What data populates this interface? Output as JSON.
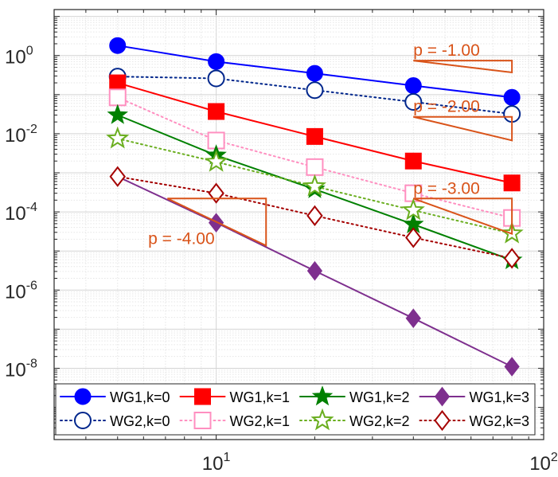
{
  "chart_data": {
    "type": "line",
    "title": "",
    "xlabel": "",
    "ylabel": "",
    "x_scale": "log",
    "y_scale": "log",
    "xlim": [
      3.2,
      100
    ],
    "ylim": [
      1.5e-10,
      15
    ],
    "grid": true,
    "x_ticks": [
      {
        "value": 10,
        "base": "10",
        "exp": "1"
      },
      {
        "value": 100,
        "base": "10",
        "exp": "2"
      }
    ],
    "y_ticks": [
      {
        "value": 1,
        "base": "10",
        "exp": "0"
      },
      {
        "value": 0.01,
        "base": "10",
        "exp": "-2"
      },
      {
        "value": 0.0001,
        "base": "10",
        "exp": "-4"
      },
      {
        "value": 1e-06,
        "base": "10",
        "exp": "-6"
      },
      {
        "value": 1e-08,
        "base": "10",
        "exp": "-8"
      }
    ],
    "x": [
      5,
      10,
      20,
      40,
      80
    ],
    "series": [
      {
        "name": "WG1,k=0",
        "color": "#0000ff",
        "marker": "circle",
        "filled": true,
        "dash": "solid",
        "values": [
          1.8,
          0.7,
          0.35,
          0.17,
          0.085
        ]
      },
      {
        "name": "WG2,k=0",
        "color": "#00268c",
        "marker": "circle",
        "filled": false,
        "dash": "dotted",
        "values": [
          0.29,
          0.26,
          0.13,
          0.065,
          0.032
        ]
      },
      {
        "name": "WG1,k=1",
        "color": "#ff0000",
        "marker": "square",
        "filled": true,
        "dash": "solid",
        "values": [
          0.2,
          0.037,
          0.0085,
          0.002,
          0.00055
        ]
      },
      {
        "name": "WG2,k=1",
        "color": "#ff8fc0",
        "marker": "square",
        "filled": false,
        "dash": "dotted",
        "values": [
          0.085,
          0.0067,
          0.0014,
          0.0003,
          7e-05
        ]
      },
      {
        "name": "WG1,k=2",
        "color": "#008000",
        "marker": "star",
        "filled": true,
        "dash": "solid",
        "values": [
          0.03,
          0.0028,
          0.00038,
          4.8e-05,
          5.8e-06
        ]
      },
      {
        "name": "WG2,k=2",
        "color": "#6aae1f",
        "marker": "star",
        "filled": false,
        "dash": "dotted",
        "values": [
          0.0075,
          0.0019,
          0.00045,
          0.00011,
          2.8e-05
        ]
      },
      {
        "name": "WG1,k=3",
        "color": "#7e2f8e",
        "marker": "diamond",
        "filled": true,
        "dash": "solid",
        "values": [
          0.0008,
          5.3e-05,
          3.1e-06,
          1.9e-07,
          1.1e-08
        ]
      },
      {
        "name": "WG2,k=3",
        "color": "#a50000",
        "marker": "diamond",
        "filled": false,
        "dash": "dotted",
        "values": [
          0.0008,
          0.0003,
          8e-05,
          2.2e-05,
          6.5e-06
        ]
      }
    ],
    "slope_triangles": [
      {
        "label": "p = -1.00",
        "slope": -1,
        "x_left": 40,
        "x_right": 80,
        "y_top": 0.74,
        "label_x": 40,
        "label_y": 0.98
      },
      {
        "label": "p = -2.00",
        "slope": -2,
        "x_left": 40,
        "x_right": 80,
        "y_top": 0.027,
        "label_x": 40,
        "label_y": 0.036
      },
      {
        "label": "p = -3.00",
        "slope": -3,
        "x_left": 40,
        "x_right": 80,
        "y_top": 0.00022,
        "label_x": 40,
        "label_y": 0.00029
      },
      {
        "label": "p = -4.00",
        "slope": -4,
        "x_left": 7.1,
        "x_right": 14.2,
        "y_top": 0.00022,
        "label_x": 6.2,
        "label_y": 1.5e-05
      }
    ],
    "slope_color": "#d95319",
    "legend": {
      "placement": "bottom",
      "columns": 4
    }
  }
}
